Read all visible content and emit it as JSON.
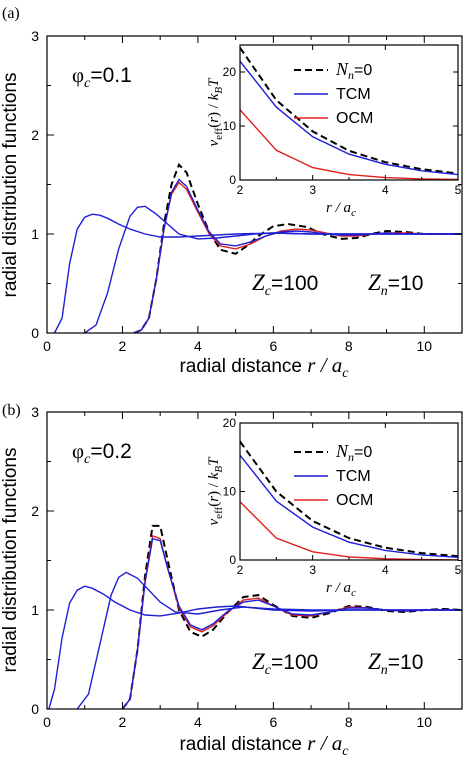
{
  "chart_data": [
    {
      "type": "line",
      "panel_label": "(a)",
      "ylabel": "radial distribution functions",
      "xlabel": "radial distance",
      "xlabel_var": "r / a",
      "xlabel_sub": "c",
      "xlim": [
        0,
        11
      ],
      "ylim": [
        0,
        3
      ],
      "xticks": [
        "0",
        "2",
        "4",
        "6",
        "8",
        "10"
      ],
      "yticks": [
        "0",
        "1",
        "2",
        "3"
      ],
      "annotations": {
        "phi": "φ",
        "phi_sub": "c",
        "phi_value": "=0.1",
        "zc": "Z",
        "zc_sub": "c",
        "zc_value": "=100",
        "zn": "Z",
        "zn_sub": "n",
        "zn_value": "=10"
      },
      "colors": {
        "dashed": "#000000",
        "tcm": "#1f1fd6",
        "ocm": "#e0201b"
      },
      "series": [
        {
          "style": "dashed",
          "color": "#000000",
          "x": [
            2.3,
            2.5,
            2.7,
            2.9,
            3.1,
            3.3,
            3.5,
            3.7,
            4.0,
            4.3,
            4.6,
            5.0,
            5.3,
            5.6,
            6.0,
            6.4,
            6.9,
            7.3,
            7.8,
            8.2,
            8.6,
            9.0,
            9.5,
            10.0,
            10.5,
            11.0
          ],
          "y": [
            0.0,
            0.03,
            0.15,
            0.55,
            1.1,
            1.5,
            1.7,
            1.62,
            1.3,
            1.02,
            0.84,
            0.8,
            0.88,
            0.98,
            1.08,
            1.1,
            1.07,
            1.0,
            0.95,
            0.96,
            1.0,
            1.03,
            1.02,
            1.0,
            1.0,
            1.0
          ]
        },
        {
          "style": "solid",
          "color": "#e0201b",
          "x": [
            2.3,
            2.5,
            2.7,
            2.9,
            3.1,
            3.3,
            3.5,
            3.7,
            4.0,
            4.3,
            4.6,
            5.0,
            5.4,
            5.8,
            6.2,
            6.6,
            7.0,
            7.4,
            7.8,
            8.2,
            8.6,
            9.0,
            9.5,
            10.0,
            10.5,
            11.0
          ],
          "y": [
            0.0,
            0.03,
            0.15,
            0.55,
            1.05,
            1.4,
            1.52,
            1.45,
            1.22,
            1.0,
            0.88,
            0.85,
            0.9,
            0.98,
            1.03,
            1.05,
            1.04,
            1.01,
            0.98,
            0.98,
            1.0,
            1.01,
            1.01,
            1.0,
            1.0,
            1.0
          ]
        },
        {
          "style": "solid",
          "color": "#1f1fd6",
          "x": [
            2.3,
            2.5,
            2.7,
            2.9,
            3.1,
            3.3,
            3.5,
            3.7,
            4.0,
            4.3,
            4.6,
            5.0,
            5.4,
            5.8,
            6.2,
            6.6,
            7.0,
            7.4,
            7.8,
            8.2,
            8.6,
            9.0,
            9.5,
            10.0,
            10.5,
            11.0
          ],
          "y": [
            0.0,
            0.03,
            0.15,
            0.55,
            1.05,
            1.42,
            1.55,
            1.48,
            1.24,
            1.02,
            0.9,
            0.88,
            0.92,
            0.98,
            1.02,
            1.03,
            1.02,
            1.0,
            0.99,
            0.99,
            1.0,
            1.01,
            1.0,
            1.0,
            1.0,
            1.0
          ]
        },
        {
          "style": "solid",
          "color": "#1f1fd6",
          "x": [
            1.0,
            1.3,
            1.6,
            1.9,
            2.2,
            2.4,
            2.6,
            2.9,
            3.2,
            3.5,
            4.0,
            4.5,
            5.0,
            5.5,
            6.0,
            7.0,
            8.0,
            9.0,
            10.0,
            11.0
          ],
          "y": [
            0.0,
            0.08,
            0.4,
            0.85,
            1.18,
            1.27,
            1.28,
            1.2,
            1.1,
            1.0,
            0.95,
            0.96,
            0.98,
            1.0,
            1.01,
            1.0,
            1.0,
            1.0,
            1.0,
            1.0
          ]
        },
        {
          "style": "solid",
          "color": "#1f1fd6",
          "x": [
            0.2,
            0.4,
            0.6,
            0.8,
            1.0,
            1.2,
            1.4,
            1.6,
            1.9,
            2.2,
            2.6,
            3.0,
            3.5,
            4.0,
            5.0,
            6.0,
            7.0,
            8.0,
            9.0,
            10.0,
            11.0
          ],
          "y": [
            0.0,
            0.15,
            0.7,
            1.05,
            1.17,
            1.2,
            1.19,
            1.16,
            1.1,
            1.05,
            1.0,
            0.97,
            0.97,
            0.98,
            1.0,
            1.01,
            1.0,
            1.0,
            1.0,
            1.0,
            1.0
          ]
        }
      ],
      "inset": {
        "ylabel": "v_eff(r) / k_B T",
        "xlabel": "r / a_c",
        "xlim": [
          2,
          5
        ],
        "ylim": [
          0,
          25
        ],
        "xticks": [
          "2",
          "3",
          "4",
          "5"
        ],
        "yticks": [
          "0",
          "10",
          "20"
        ],
        "legend": [
          {
            "label": "N",
            "sub": "n",
            "tail": "=0",
            "style": "dashed",
            "color": "#000000"
          },
          {
            "label": "TCM",
            "sub": "",
            "tail": "",
            "style": "solid",
            "color": "#1f1fd6"
          },
          {
            "label": "OCM",
            "sub": "",
            "tail": "",
            "style": "solid",
            "color": "#e0201b"
          }
        ],
        "series": [
          {
            "style": "dashed",
            "color": "#000000",
            "x": [
              2.0,
              2.5,
              3.0,
              3.5,
              4.0,
              4.5,
              5.0
            ],
            "y": [
              24.5,
              14.8,
              9.0,
              5.4,
              3.3,
              2.0,
              1.2
            ]
          },
          {
            "style": "solid",
            "color": "#1f1fd6",
            "x": [
              2.0,
              2.5,
              3.0,
              3.5,
              4.0,
              4.5,
              5.0
            ],
            "y": [
              22.0,
              13.5,
              8.0,
              4.8,
              2.9,
              1.7,
              1.0
            ]
          },
          {
            "style": "solid",
            "color": "#e0201b",
            "x": [
              2.0,
              2.5,
              3.0,
              3.5,
              4.0,
              4.5,
              5.0
            ],
            "y": [
              13.0,
              5.5,
              2.3,
              1.0,
              0.45,
              0.2,
              0.1
            ]
          }
        ]
      }
    },
    {
      "type": "line",
      "panel_label": "(b)",
      "ylabel": "radial distribution functions",
      "xlabel": "radial distance",
      "xlabel_var": "r / a",
      "xlabel_sub": "c",
      "xlim": [
        0,
        11
      ],
      "ylim": [
        0,
        3
      ],
      "xticks": [
        "0",
        "2",
        "4",
        "6",
        "8",
        "10"
      ],
      "yticks": [
        "0",
        "1",
        "2",
        "3"
      ],
      "annotations": {
        "phi": "φ",
        "phi_sub": "c",
        "phi_value": "=0.2",
        "zc": "Z",
        "zc_sub": "c",
        "zc_value": "=100",
        "zn": "Z",
        "zn_sub": "n",
        "zn_value": "=10"
      },
      "colors": {
        "dashed": "#000000",
        "tcm": "#1f1fd6",
        "ocm": "#e0201b"
      },
      "series": [
        {
          "style": "dashed",
          "color": "#000000",
          "x": [
            2.0,
            2.2,
            2.4,
            2.6,
            2.8,
            3.0,
            3.2,
            3.5,
            3.8,
            4.1,
            4.4,
            4.8,
            5.2,
            5.6,
            6.0,
            6.5,
            7.0,
            7.5,
            8.0,
            8.5,
            9.0,
            9.5,
            10.0,
            10.5,
            11.0
          ],
          "y": [
            0.0,
            0.1,
            0.6,
            1.35,
            1.85,
            1.85,
            1.5,
            1.0,
            0.78,
            0.73,
            0.8,
            0.98,
            1.13,
            1.15,
            1.05,
            0.94,
            0.92,
            0.97,
            1.04,
            1.03,
            0.99,
            0.98,
            1.0,
            1.01,
            1.0
          ]
        },
        {
          "style": "solid",
          "color": "#e0201b",
          "x": [
            2.0,
            2.2,
            2.4,
            2.6,
            2.8,
            3.0,
            3.2,
            3.5,
            3.8,
            4.1,
            4.4,
            4.8,
            5.2,
            5.6,
            6.0,
            6.5,
            7.0,
            7.5,
            8.0,
            8.5,
            9.0,
            9.5,
            10.0,
            10.5,
            11.0
          ],
          "y": [
            0.0,
            0.1,
            0.6,
            1.3,
            1.75,
            1.72,
            1.42,
            1.02,
            0.83,
            0.78,
            0.84,
            0.98,
            1.1,
            1.12,
            1.04,
            0.95,
            0.94,
            0.98,
            1.03,
            1.02,
            1.0,
            0.99,
            1.0,
            1.0,
            1.0
          ]
        },
        {
          "style": "solid",
          "color": "#1f1fd6",
          "x": [
            2.0,
            2.2,
            2.4,
            2.6,
            2.8,
            3.0,
            3.2,
            3.5,
            3.8,
            4.1,
            4.4,
            4.8,
            5.2,
            5.6,
            6.0,
            6.5,
            7.0,
            7.5,
            8.0,
            8.5,
            9.0,
            9.5,
            10.0,
            10.5,
            11.0
          ],
          "y": [
            0.0,
            0.1,
            0.6,
            1.28,
            1.72,
            1.7,
            1.42,
            1.04,
            0.85,
            0.8,
            0.86,
            0.99,
            1.08,
            1.1,
            1.04,
            0.96,
            0.95,
            0.98,
            1.02,
            1.02,
            1.0,
            0.99,
            1.0,
            1.0,
            1.0
          ]
        },
        {
          "style": "solid",
          "color": "#1f1fd6",
          "x": [
            0.8,
            1.1,
            1.4,
            1.7,
            1.9,
            2.1,
            2.4,
            2.7,
            3.0,
            3.4,
            4.0,
            4.6,
            5.2,
            6.0,
            7.0,
            8.0,
            9.0,
            10.0,
            11.0
          ],
          "y": [
            0.0,
            0.15,
            0.65,
            1.15,
            1.33,
            1.38,
            1.32,
            1.2,
            1.08,
            0.98,
            0.96,
            1.0,
            1.03,
            1.01,
            1.0,
            1.0,
            1.0,
            1.0,
            1.0
          ]
        },
        {
          "style": "solid",
          "color": "#1f1fd6",
          "x": [
            0.05,
            0.2,
            0.4,
            0.6,
            0.8,
            1.0,
            1.2,
            1.5,
            1.8,
            2.2,
            2.6,
            3.0,
            3.5,
            4.0,
            4.5,
            5.0,
            5.5,
            6.0,
            7.0,
            8.0,
            9.0,
            10.0,
            11.0
          ],
          "y": [
            0.0,
            0.2,
            0.72,
            1.07,
            1.2,
            1.24,
            1.22,
            1.16,
            1.08,
            1.0,
            0.95,
            0.94,
            0.97,
            1.01,
            1.03,
            1.04,
            1.02,
            1.0,
            0.99,
            1.0,
            1.0,
            1.0,
            1.0
          ]
        }
      ],
      "inset": {
        "ylabel": "v_eff(r) / k_B T",
        "xlabel": "r / a_c",
        "xlim": [
          2,
          5
        ],
        "ylim": [
          0,
          20
        ],
        "xticks": [
          "2",
          "3",
          "4",
          "5"
        ],
        "yticks": [
          "0",
          "10",
          "20"
        ],
        "legend": [
          {
            "label": "N",
            "sub": "n",
            "tail": "=0",
            "style": "dashed",
            "color": "#000000"
          },
          {
            "label": "TCM",
            "sub": "",
            "tail": "",
            "style": "solid",
            "color": "#1f1fd6"
          },
          {
            "label": "OCM",
            "sub": "",
            "tail": "",
            "style": "solid",
            "color": "#e0201b"
          }
        ],
        "series": [
          {
            "style": "dashed",
            "color": "#000000",
            "x": [
              2.0,
              2.5,
              3.0,
              3.5,
              4.0,
              4.5,
              5.0
            ],
            "y": [
              17.3,
              10.0,
              5.7,
              3.2,
              1.8,
              1.0,
              0.55
            ]
          },
          {
            "style": "solid",
            "color": "#1f1fd6",
            "x": [
              2.0,
              2.5,
              3.0,
              3.5,
              4.0,
              4.5,
              5.0
            ],
            "y": [
              15.3,
              8.6,
              4.8,
              2.6,
              1.4,
              0.75,
              0.4
            ]
          },
          {
            "style": "solid",
            "color": "#e0201b",
            "x": [
              2.0,
              2.5,
              3.0,
              3.5,
              4.0,
              4.5,
              5.0
            ],
            "y": [
              8.5,
              3.2,
              1.2,
              0.45,
              0.17,
              0.06,
              0.02
            ]
          }
        ]
      }
    }
  ]
}
